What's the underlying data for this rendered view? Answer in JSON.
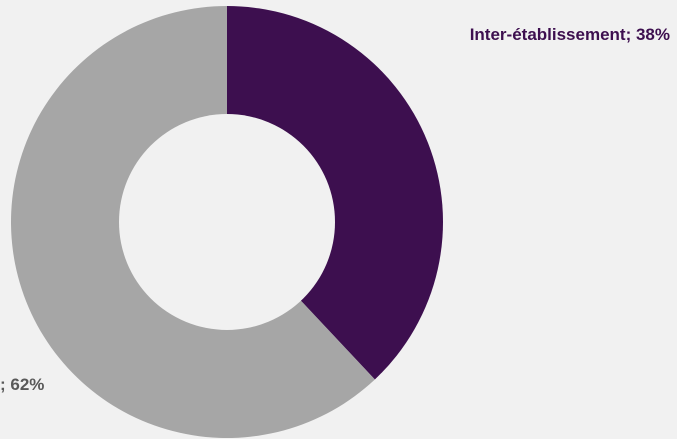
{
  "chart_data": {
    "type": "donut",
    "series": [
      {
        "values": [
          {
            "label": "Inter-établissement",
            "value": 38,
            "color": "#3d0f4f",
            "display": "Inter-établissement; 38%",
            "label_color": "#3d0f4f"
          },
          {
            "label": "",
            "value": 62,
            "color": "#a6a6a6",
            "display": "; 62%",
            "label_color": "#595959"
          }
        ]
      }
    ],
    "unit": "%",
    "start_angle_deg": 0,
    "direction": "clockwise",
    "background": "#f1f1f1",
    "hole_color": "#f1f1f1"
  }
}
